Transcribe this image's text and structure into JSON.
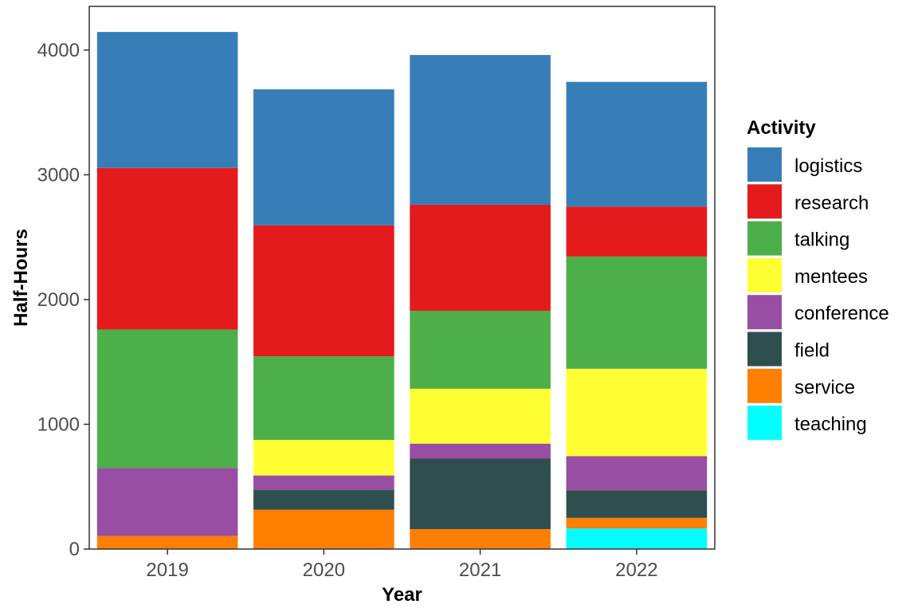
{
  "chart_data": {
    "type": "bar",
    "stacked": true,
    "title": "",
    "xlabel": "Year",
    "ylabel": "Half-Hours",
    "categories": [
      "2019",
      "2020",
      "2021",
      "2022"
    ],
    "ylim": [
      0,
      4350
    ],
    "yticks": [
      0,
      1000,
      2000,
      3000,
      4000
    ],
    "grid": false,
    "legend": {
      "title": "Activity",
      "position": "right"
    },
    "series": [
      {
        "name": "teaching",
        "color": "#00FFFF",
        "values": [
          0,
          0,
          0,
          165
        ]
      },
      {
        "name": "service",
        "color": "#FF7F00",
        "values": [
          105,
          315,
          160,
          85
        ]
      },
      {
        "name": "field",
        "color": "#2F4F4F",
        "values": [
          0,
          160,
          565,
          220
        ]
      },
      {
        "name": "conference",
        "color": "#984EA3",
        "values": [
          545,
          115,
          120,
          275
        ]
      },
      {
        "name": "mentees",
        "color": "#FFFF33",
        "values": [
          0,
          285,
          440,
          700
        ]
      },
      {
        "name": "talking",
        "color": "#4DAF4A",
        "values": [
          1110,
          670,
          625,
          900
        ]
      },
      {
        "name": "research",
        "color": "#E41A1C",
        "values": [
          1295,
          1050,
          850,
          400
        ]
      },
      {
        "name": "logistics",
        "color": "#377EB8",
        "values": [
          1090,
          1090,
          1200,
          1000
        ]
      }
    ]
  }
}
